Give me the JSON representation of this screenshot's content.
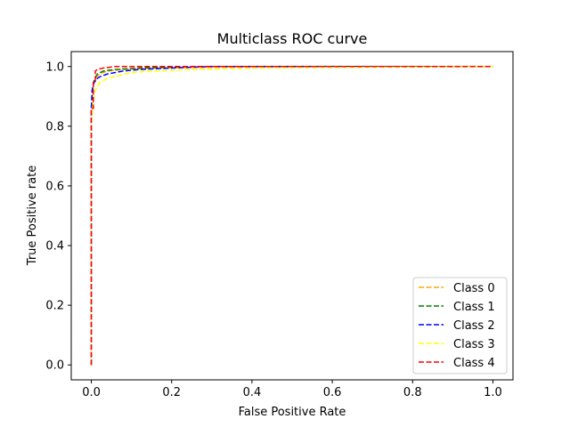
{
  "chart_data": {
    "type": "line",
    "title": "Multiclass ROC curve",
    "xlabel": "False Positive Rate",
    "ylabel": "True Positive rate",
    "xlim": [
      -0.05,
      1.05
    ],
    "ylim": [
      -0.05,
      1.05
    ],
    "xticks": [
      "0.0",
      "0.2",
      "0.4",
      "0.6",
      "0.8",
      "1.0"
    ],
    "yticks": [
      "0.0",
      "0.2",
      "0.4",
      "0.6",
      "0.8",
      "1.0"
    ],
    "xtick_values": [
      0,
      0.2,
      0.4,
      0.6,
      0.8,
      1.0
    ],
    "ytick_values": [
      0,
      0.2,
      0.4,
      0.6,
      0.8,
      1.0
    ],
    "grid": false,
    "legend_position": "lower-right",
    "series": [
      {
        "name": "Class 0",
        "color": "#ffa500",
        "x": [
          0,
          0,
          0.002,
          0.005,
          0.01,
          0.02,
          0.04,
          0.08,
          0.15,
          0.3,
          0.5,
          1.0
        ],
        "y": [
          0,
          0.82,
          0.9,
          0.94,
          0.96,
          0.975,
          0.985,
          0.99,
          0.995,
          0.998,
          1.0,
          1.0
        ]
      },
      {
        "name": "Class 1",
        "color": "#008000",
        "x": [
          0,
          0,
          0.003,
          0.008,
          0.015,
          0.03,
          0.06,
          0.12,
          0.25,
          1.0
        ],
        "y": [
          0,
          0.86,
          0.93,
          0.96,
          0.975,
          0.985,
          0.99,
          0.995,
          1.0,
          1.0
        ]
      },
      {
        "name": "Class 2",
        "color": "#0000ff",
        "x": [
          0,
          0,
          0.002,
          0.005,
          0.01,
          0.02,
          0.04,
          0.08,
          0.12,
          0.2,
          0.3,
          1.0
        ],
        "y": [
          0,
          0.86,
          0.92,
          0.94,
          0.955,
          0.965,
          0.975,
          0.985,
          0.99,
          0.995,
          1.0,
          1.0
        ]
      },
      {
        "name": "Class 3",
        "color": "#ffff00",
        "x": [
          0,
          0,
          0.004,
          0.01,
          0.02,
          0.04,
          0.07,
          0.1,
          0.15,
          0.25,
          0.4,
          1.0
        ],
        "y": [
          0,
          0.8,
          0.88,
          0.92,
          0.945,
          0.96,
          0.97,
          0.98,
          0.985,
          0.99,
          0.995,
          1.0
        ]
      },
      {
        "name": "Class 4",
        "color": "#ff0000",
        "x": [
          0,
          0,
          0.005,
          0.005,
          0.01,
          0.01,
          0.015,
          0.03,
          0.06,
          0.1,
          1.0
        ],
        "y": [
          0,
          0.86,
          0.86,
          0.95,
          0.95,
          0.985,
          0.99,
          0.995,
          1.0,
          1.0,
          1.0
        ]
      }
    ]
  }
}
